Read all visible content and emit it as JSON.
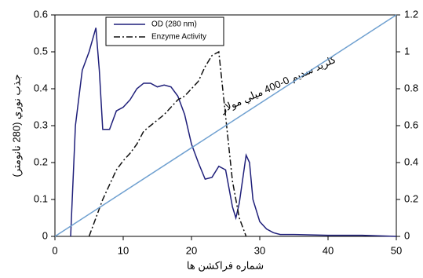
{
  "chart_data": {
    "type": "line",
    "xlabel": "شماره فراكشن ها",
    "ylabel": "جذب نوري (280 نانومتر)",
    "annotation": "كلريد سديم 0-400 ميلي مولار",
    "xlim": [
      0,
      50
    ],
    "xticks": [
      0,
      10,
      20,
      30,
      40,
      50
    ],
    "ylim": [
      0,
      0.6
    ],
    "yticks": [
      0,
      0.1,
      0.2,
      0.3,
      0.4,
      0.5,
      0.6
    ],
    "y2lim": [
      0,
      1.2
    ],
    "y2ticks": [
      0,
      0.2,
      0.4,
      0.6,
      0.8,
      1,
      1.2
    ],
    "legend": "top-left",
    "series": [
      {
        "name": "OD (280 nm)",
        "color": "#1f1f7a",
        "style": "solid",
        "x": [
          2.3,
          3,
          4,
          5,
          6,
          6.5,
          7,
          8,
          9,
          10,
          11,
          12,
          13,
          14,
          15,
          16,
          17,
          18,
          19,
          20,
          21,
          22,
          23,
          24,
          25,
          26,
          26.5,
          27,
          28,
          28.5,
          29,
          30,
          31,
          32,
          33,
          35,
          40,
          45,
          50
        ],
        "values": [
          0,
          0.3,
          0.45,
          0.5,
          0.565,
          0.45,
          0.29,
          0.29,
          0.34,
          0.35,
          0.37,
          0.4,
          0.415,
          0.415,
          0.405,
          0.41,
          0.405,
          0.38,
          0.33,
          0.25,
          0.2,
          0.155,
          0.16,
          0.19,
          0.18,
          0.08,
          0.05,
          0.09,
          0.22,
          0.2,
          0.1,
          0.04,
          0.02,
          0.01,
          0.005,
          0.005,
          0.003,
          0.003,
          0
        ]
      },
      {
        "name": "Enzyme Activity",
        "color": "#111111",
        "style": "dashdot",
        "axis": "y2",
        "x": [
          5,
          6,
          7,
          8,
          9,
          10,
          11,
          12,
          13,
          14,
          15,
          16,
          17,
          18,
          19,
          20,
          21,
          22,
          23,
          24,
          25,
          26,
          27,
          28
        ],
        "values": [
          0,
          0.1,
          0.2,
          0.28,
          0.36,
          0.41,
          0.45,
          0.5,
          0.57,
          0.6,
          0.63,
          0.66,
          0.7,
          0.74,
          0.76,
          0.8,
          0.84,
          0.92,
          0.98,
          1.0,
          0.65,
          0.3,
          0.1,
          0
        ]
      },
      {
        "color": "#6fa0d0",
        "style": "solid",
        "axis": "y2",
        "x": [
          0,
          50
        ],
        "values": [
          0,
          1.2
        ]
      }
    ]
  }
}
